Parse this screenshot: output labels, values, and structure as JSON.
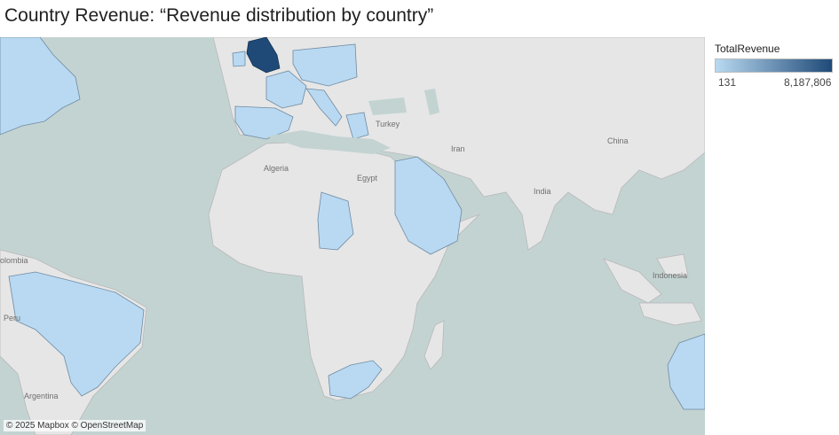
{
  "header": {
    "title": "Country Revenue: “Revenue distribution by country”"
  },
  "map": {
    "colors": {
      "ocean": "#c3d3d2",
      "land": "#e6e6e6",
      "border": "#b8b8b8",
      "low": "#b8d9f1",
      "high": "#1f4a78"
    },
    "place_labels": {
      "turkey": "Turkey",
      "algeria": "Algeria",
      "egypt": "Egypt",
      "iran": "Iran",
      "china": "China",
      "india": "India",
      "indonesia": "Indonesia",
      "colombia": "olombia",
      "peru": "Peru",
      "argentina": "Argentina"
    },
    "highlighted_countries": [
      {
        "name": "United Kingdom",
        "level": "high"
      },
      {
        "name": "France",
        "level": "low"
      },
      {
        "name": "Spain",
        "level": "low"
      },
      {
        "name": "Portugal",
        "level": "low"
      },
      {
        "name": "Italy",
        "level": "low"
      },
      {
        "name": "Germany",
        "level": "low"
      },
      {
        "name": "Poland",
        "level": "low"
      },
      {
        "name": "Greece",
        "level": "low"
      },
      {
        "name": "Saudi Arabia",
        "level": "low"
      },
      {
        "name": "Chad",
        "level": "low"
      },
      {
        "name": "South Africa",
        "level": "low"
      },
      {
        "name": "Brazil",
        "level": "low"
      },
      {
        "name": "Canada",
        "level": "low"
      },
      {
        "name": "Australia",
        "level": "low"
      }
    ],
    "attribution": "© 2025 Mapbox © OpenStreetMap"
  },
  "legend": {
    "title": "TotalRevenue",
    "min": "131",
    "max": "8,187,806"
  }
}
